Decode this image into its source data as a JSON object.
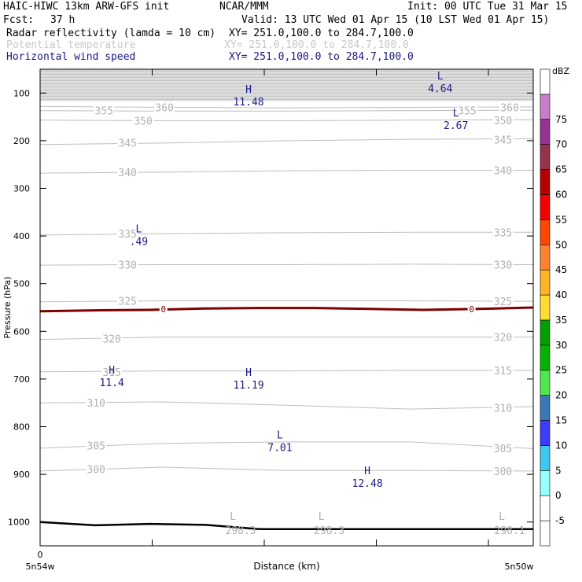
{
  "header": {
    "model": "HAIC-HIWC 13km ARW-GFS init",
    "org": "NCAR/MMM",
    "init": "Init: 00 UTC Tue 31 Mar 15",
    "fcst_label": "Fcst:",
    "fcst_value": "37 h",
    "valid": "Valid: 13 UTC Wed 01 Apr 15 (10 LST Wed 01 Apr 15)"
  },
  "fields": [
    {
      "name": "Radar reflectivity (lamda = 10 cm)",
      "xy": "XY= 251.0,100.0 to 284.7,100.0",
      "color": "#000000"
    },
    {
      "name": "Potential temperature",
      "xy": "XY= 251.0,100.0 to 284.7,100.0",
      "color": "#c8c8c8"
    },
    {
      "name": "Horizontal wind speed",
      "xy": "XY= 251.0,100.0 to 284.7,100.0",
      "color": "#1a1a80"
    }
  ],
  "chart_data": {
    "type": "cross-section",
    "xlabel": "Distance (km)",
    "ylabel": "Pressure (hPa)",
    "x_start_value": "0",
    "x_left_label": "5n54w",
    "x_right_label": "5n50w",
    "xlim": [
      0,
      4.4
    ],
    "ylim": [
      1050,
      50
    ],
    "y_ticks": [
      100,
      200,
      300,
      400,
      500,
      600,
      700,
      800,
      900,
      1000
    ],
    "x_ticks": [
      0,
      1,
      2,
      3,
      4
    ],
    "colorbar": {
      "unit": "dBZ",
      "levels": [
        -5,
        0,
        5,
        10,
        15,
        20,
        25,
        30,
        35,
        40,
        45,
        50,
        55,
        60,
        65,
        70,
        75,
        80
      ],
      "colors": [
        "#ffffff",
        "#ffffff",
        "#96ffff",
        "#3cc8f0",
        "#3c3cff",
        "#3c78b4",
        "#50e650",
        "#00b400",
        "#00a000",
        "#ffdc32",
        "#ffb428",
        "#ff8232",
        "#ff4600",
        "#f50000",
        "#b40000",
        "#96324b",
        "#963296",
        "#c87dc8",
        "#ffffff"
      ],
      "labels": [
        "-5",
        "0",
        "5",
        "10",
        "15",
        "20",
        "25",
        "30",
        "35",
        "40",
        "45",
        "50",
        "55",
        "60",
        "65",
        "70",
        "75"
      ]
    },
    "theta_lines": [
      {
        "value": 360,
        "p": [
          128,
          130,
          131,
          130,
          129
        ]
      },
      {
        "value": 355,
        "p": [
          137,
          138,
          138,
          137,
          136
        ]
      },
      {
        "value": 350,
        "p": [
          157,
          158,
          158,
          157,
          156
        ]
      },
      {
        "value": 345,
        "p": [
          208,
          205,
          200,
          197,
          196
        ]
      },
      {
        "value": 340,
        "p": [
          268,
          266,
          263,
          262,
          262
        ]
      },
      {
        "value": 335,
        "p": [
          398,
          395,
          393,
          392,
          392
        ]
      },
      {
        "value": 330,
        "p": [
          461,
          460,
          460,
          459,
          460
        ]
      },
      {
        "value": 325,
        "p": [
          538,
          536,
          536,
          536,
          537
        ]
      },
      {
        "value": 320,
        "p": [
          617,
          612,
          612,
          612,
          612
        ]
      },
      {
        "value": 315,
        "p": [
          685,
          683,
          683,
          682,
          682
        ]
      },
      {
        "value": 310,
        "p": [
          750,
          748,
          755,
          763,
          758
        ]
      },
      {
        "value": 305,
        "p": [
          845,
          835,
          832,
          832,
          846
        ]
      },
      {
        "value": 300,
        "p": [
          893,
          885,
          892,
          892,
          893
        ]
      }
    ],
    "theta_labels": [
      {
        "text": "360",
        "x": 1.11,
        "p": 130
      },
      {
        "text": "360",
        "x": 4.19,
        "p": 130
      },
      {
        "text": "355",
        "x": 0.57,
        "p": 137
      },
      {
        "text": "355",
        "x": 3.81,
        "p": 137
      },
      {
        "text": "350",
        "x": 0.92,
        "p": 158
      },
      {
        "text": "350",
        "x": 4.13,
        "p": 157
      },
      {
        "text": "345",
        "x": 0.78,
        "p": 204
      },
      {
        "text": "345",
        "x": 4.13,
        "p": 198
      },
      {
        "text": "340",
        "x": 0.78,
        "p": 266
      },
      {
        "text": "340",
        "x": 4.13,
        "p": 262
      },
      {
        "text": "335",
        "x": 0.78,
        "p": 395
      },
      {
        "text": "335",
        "x": 4.13,
        "p": 392
      },
      {
        "text": "330",
        "x": 0.78,
        "p": 460
      },
      {
        "text": "330",
        "x": 4.13,
        "p": 460
      },
      {
        "text": "325",
        "x": 0.78,
        "p": 536
      },
      {
        "text": "325",
        "x": 4.13,
        "p": 537
      },
      {
        "text": "320",
        "x": 0.64,
        "p": 615
      },
      {
        "text": "320",
        "x": 4.13,
        "p": 612
      },
      {
        "text": "315",
        "x": 0.64,
        "p": 685
      },
      {
        "text": "315",
        "x": 4.13,
        "p": 682
      },
      {
        "text": "310",
        "x": 0.5,
        "p": 750
      },
      {
        "text": "310",
        "x": 4.13,
        "p": 760
      },
      {
        "text": "305",
        "x": 0.5,
        "p": 840
      },
      {
        "text": "305",
        "x": 4.13,
        "p": 845
      },
      {
        "text": "300",
        "x": 0.5,
        "p": 889
      },
      {
        "text": "300",
        "x": 4.13,
        "p": 893
      }
    ],
    "surface_theta": [
      {
        "letter": "L",
        "value": "298.3",
        "x": 1.79,
        "p": 1002
      },
      {
        "letter": "L",
        "value": "298.3",
        "x": 2.58,
        "p": 1002
      },
      {
        "letter": "L",
        "value": "298.1",
        "x": 4.19,
        "p": 1002
      }
    ],
    "freezing_level": {
      "label": "0",
      "p": [
        558,
        556,
        555,
        552,
        551,
        551,
        553,
        555,
        553,
        550
      ],
      "label_x": [
        1.1,
        3.85
      ]
    },
    "terrain": {
      "p": [
        1000,
        1007,
        1004,
        1006,
        1015,
        1015,
        1015,
        1015,
        1015,
        1015
      ]
    },
    "wind_extrema": [
      {
        "letter": "L",
        "value": "4.64",
        "x": 3.57,
        "p": 75
      },
      {
        "letter": "L",
        "value": "2.67",
        "x": 3.71,
        "p": 152
      },
      {
        "letter": "H",
        "value": "11.48",
        "x": 1.86,
        "p": 103
      },
      {
        "letter": "L",
        "value": ".49",
        "x": 0.88,
        "p": 396
      },
      {
        "letter": "H",
        "value": "11.4",
        "x": 0.64,
        "p": 692
      },
      {
        "letter": "H",
        "value": "11.19",
        "x": 1.86,
        "p": 697
      },
      {
        "letter": "L",
        "value": "7.01",
        "x": 2.14,
        "p": 828
      },
      {
        "letter": "H",
        "value": "12.48",
        "x": 2.92,
        "p": 903
      }
    ]
  }
}
